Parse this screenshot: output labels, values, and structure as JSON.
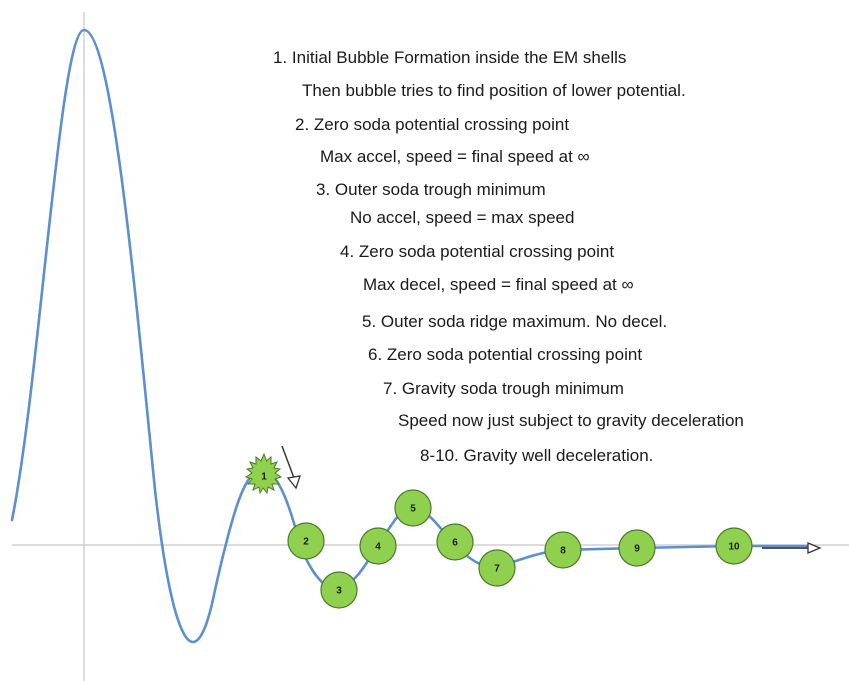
{
  "notes": [
    "1. Initial Bubble Formation inside the EM shells",
    "Then bubble tries to find position of lower potential.",
    "2. Zero soda potential crossing point",
    "Max accel, speed = final speed at ∞",
    "3. Outer soda trough minimum",
    "No accel, speed = max speed",
    "4. Zero soda potential crossing point",
    "Max decel, speed = final speed at ∞",
    "5. Outer soda ridge maximum.  No decel.",
    "6. Zero soda potential crossing point",
    "7. Gravity soda trough minimum",
    "Speed now just subject to gravity deceleration",
    "8-10. Gravity well deceleration."
  ],
  "markers": [
    "1",
    "2",
    "3",
    "4",
    "5",
    "6",
    "7",
    "8",
    "9",
    "10"
  ],
  "colors": {
    "curve": "#5b8fd0",
    "axis": "#c8c8c8",
    "marker_fill": "#8fd14f",
    "marker_stroke": "#4a7a2a",
    "arrow": "#555555",
    "text": "#1a1a1a"
  }
}
